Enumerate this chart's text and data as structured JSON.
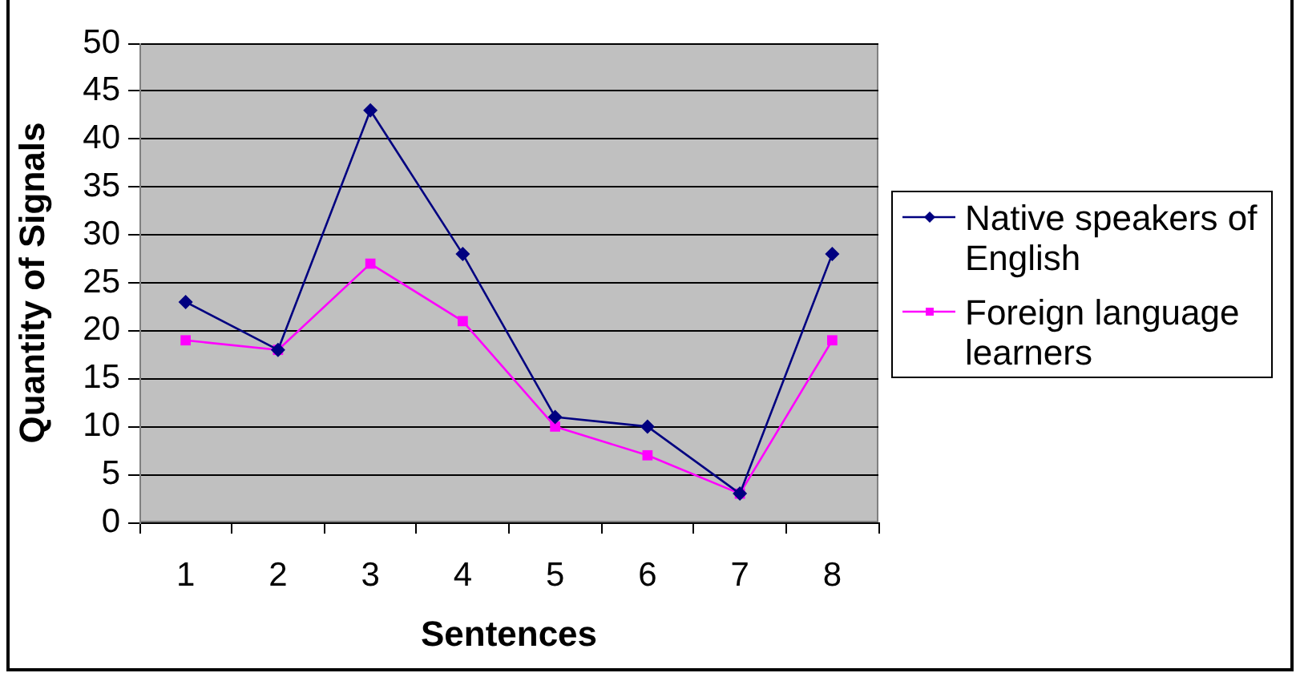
{
  "chart_data": {
    "type": "line",
    "xlabel": "Sentences",
    "ylabel": "Quantity of Signals",
    "categories": [
      "1",
      "2",
      "3",
      "4",
      "5",
      "6",
      "7",
      "8"
    ],
    "series": [
      {
        "name": "Native speakers of English",
        "color": "#000080",
        "marker": "diamond",
        "values": [
          23,
          18,
          43,
          28,
          11,
          10,
          3,
          28
        ]
      },
      {
        "name": "Foreign language learners",
        "color": "#ff00ff",
        "marker": "square",
        "values": [
          19,
          18,
          27,
          21,
          10,
          7,
          3,
          19
        ]
      }
    ],
    "ylim": [
      0,
      50
    ],
    "yticks": [
      0,
      5,
      10,
      15,
      20,
      25,
      30,
      35,
      40,
      45,
      50
    ],
    "grid": "y",
    "legend": "right"
  }
}
